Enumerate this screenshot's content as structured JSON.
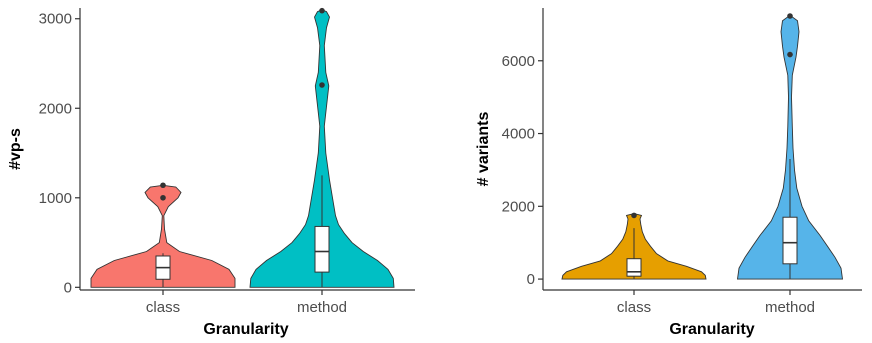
{
  "chart_data": [
    {
      "type": "violin",
      "xlabel": "Granularity",
      "ylabel": "#vp-s",
      "ylim": [
        -30,
        3120
      ],
      "yticks": [
        0,
        1000,
        2000,
        3000
      ],
      "ytick_labels": [
        "0",
        "1000",
        "2000",
        "3000"
      ],
      "grid": false,
      "legend": "none",
      "categories": [
        "class",
        "method"
      ],
      "groups": [
        {
          "category": "class",
          "color": "#F8766D",
          "density": [
            [
              0,
              0.96
            ],
            [
              100,
              0.96
            ],
            [
              200,
              0.88
            ],
            [
              300,
              0.65
            ],
            [
              400,
              0.22
            ],
            [
              500,
              0.05
            ],
            [
              650,
              0.02
            ],
            [
              800,
              0.01
            ],
            [
              900,
              0.07
            ],
            [
              1000,
              0.2
            ],
            [
              1060,
              0.24
            ],
            [
              1120,
              0.17
            ],
            [
              1140,
              0
            ]
          ],
          "box": {
            "q1": 90,
            "median": 220,
            "q3": 350,
            "whisker_low": 0,
            "whisker_high": 380
          },
          "outliers": [
            1140,
            1000
          ]
        },
        {
          "category": "method",
          "color": "#00BFC4",
          "density": [
            [
              0,
              0.96
            ],
            [
              100,
              0.95
            ],
            [
              200,
              0.88
            ],
            [
              300,
              0.74
            ],
            [
              400,
              0.55
            ],
            [
              500,
              0.4
            ],
            [
              600,
              0.3
            ],
            [
              700,
              0.22
            ],
            [
              800,
              0.18
            ],
            [
              1000,
              0.14
            ],
            [
              1200,
              0.1
            ],
            [
              1500,
              0.05
            ],
            [
              1800,
              0.03
            ],
            [
              2100,
              0.07
            ],
            [
              2250,
              0.09
            ],
            [
              2400,
              0.05
            ],
            [
              2700,
              0.03
            ],
            [
              2900,
              0.06
            ],
            [
              3020,
              0.1
            ],
            [
              3080,
              0.06
            ],
            [
              3100,
              0
            ]
          ],
          "box": {
            "q1": 170,
            "median": 400,
            "q3": 680,
            "whisker_low": 0,
            "whisker_high": 1250
          },
          "outliers": [
            3090,
            2260
          ]
        }
      ]
    },
    {
      "type": "violin",
      "xlabel": "Granularity",
      "ylabel": "# variants",
      "ylim": [
        -300,
        7450
      ],
      "yticks": [
        0,
        2000,
        4000,
        6000
      ],
      "ytick_labels": [
        "0",
        "2000",
        "4000",
        "6000"
      ],
      "grid": false,
      "legend": "none",
      "categories": [
        "class",
        "method"
      ],
      "groups": [
        {
          "category": "class",
          "color": "#E69F00",
          "density": [
            [
              0,
              0.96
            ],
            [
              100,
              0.95
            ],
            [
              200,
              0.9
            ],
            [
              350,
              0.7
            ],
            [
              500,
              0.45
            ],
            [
              700,
              0.3
            ],
            [
              900,
              0.22
            ],
            [
              1100,
              0.15
            ],
            [
              1300,
              0.11
            ],
            [
              1500,
              0.09
            ],
            [
              1650,
              0.08
            ],
            [
              1750,
              0.1
            ],
            [
              1800,
              0
            ]
          ],
          "box": {
            "q1": 80,
            "median": 200,
            "q3": 560,
            "whisker_low": 0,
            "whisker_high": 1400
          },
          "outliers": [
            1750
          ]
        },
        {
          "category": "method",
          "color": "#56B4E9",
          "density": [
            [
              0,
              0.7
            ],
            [
              300,
              0.68
            ],
            [
              600,
              0.6
            ],
            [
              900,
              0.5
            ],
            [
              1200,
              0.4
            ],
            [
              1600,
              0.25
            ],
            [
              2000,
              0.16
            ],
            [
              2500,
              0.09
            ],
            [
              3000,
              0.06
            ],
            [
              3600,
              0.04
            ],
            [
              4200,
              0.03
            ],
            [
              5000,
              0.02
            ],
            [
              5600,
              0.03
            ],
            [
              6100,
              0.08
            ],
            [
              6400,
              0.1
            ],
            [
              6800,
              0.12
            ],
            [
              7100,
              0.1
            ],
            [
              7250,
              0
            ]
          ],
          "box": {
            "q1": 420,
            "median": 1000,
            "q3": 1700,
            "whisker_low": 0,
            "whisker_high": 3300
          },
          "outliers": [
            7230,
            6170
          ]
        }
      ]
    }
  ]
}
